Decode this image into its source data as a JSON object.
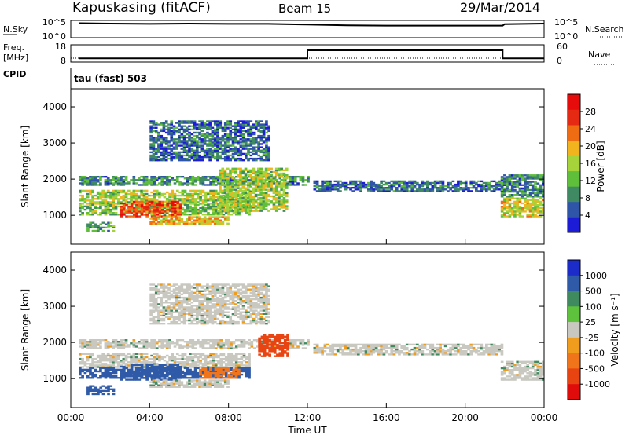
{
  "header": {
    "title": "Kapuskasing (fitACF)",
    "beam": "Beam 15",
    "date": "29/Mar/2014"
  },
  "top_panel": {
    "left_label": "N.Sky",
    "left_ticks": [
      "10^5",
      "10^0"
    ],
    "right_label": "N.Search",
    "right_ticks": [
      "10^5",
      "10^0"
    ]
  },
  "freq_panel": {
    "left_label_1": "Freq.",
    "left_label_2": "[MHz]",
    "left_ticks": [
      "18",
      "8"
    ],
    "right_label": "Nave",
    "right_ticks": [
      "60",
      "0"
    ]
  },
  "cpid": {
    "label": "CPID",
    "program": "tau (fast) 503"
  },
  "colors": {
    "power": [
      "#1c1cd6",
      "#2f55a8",
      "#3f8a62",
      "#5fbf3a",
      "#a6d23a",
      "#f2b41e",
      "#f06c12",
      "#e42a12",
      "#e60c0c"
    ],
    "velocity": [
      "#1c2cc8",
      "#2f5aa8",
      "#3f8a5e",
      "#5fc23c",
      "#c8c8c0",
      "#f09c1c",
      "#f0741a",
      "#e84412",
      "#e00c0c"
    ],
    "sky_trace": "#000000"
  },
  "chart_data": [
    {
      "type": "heatmap",
      "name": "power",
      "ylabel": "Slant Range [km]",
      "ylim": [
        200,
        4500
      ],
      "y_ticks": [
        "1000",
        "2000",
        "3000",
        "4000"
      ],
      "colorbar_label": "Power [dB]",
      "colorbar_ticks": [
        "4",
        "8",
        "12",
        "16",
        "20",
        "24",
        "28"
      ],
      "bands": [
        {
          "t0": 0.4,
          "t1": 12.0,
          "r0": 1820,
          "r1": 2080,
          "val": 8
        },
        {
          "t0": 0.4,
          "t1": 9.0,
          "r0": 1300,
          "r1": 1700,
          "val": 14
        },
        {
          "t0": 0.4,
          "t1": 9.0,
          "r0": 1000,
          "r1": 1300,
          "val": 12
        },
        {
          "t0": 2.5,
          "t1": 5.5,
          "r0": 950,
          "r1": 1400,
          "val": 24
        },
        {
          "t0": 0.8,
          "t1": 2.2,
          "r0": 550,
          "r1": 800,
          "val": 10
        },
        {
          "t0": 4.0,
          "t1": 8.0,
          "r0": 750,
          "r1": 950,
          "val": 18
        },
        {
          "t0": 7.5,
          "t1": 11.0,
          "r0": 1100,
          "r1": 2300,
          "val": 14
        },
        {
          "t0": 12.3,
          "t1": 21.8,
          "r0": 1650,
          "r1": 1950,
          "val": 6
        },
        {
          "t0": 21.8,
          "t1": 24.0,
          "r0": 950,
          "r1": 1450,
          "val": 16
        },
        {
          "t0": 21.8,
          "t1": 24.0,
          "r0": 1500,
          "r1": 2100,
          "val": 8
        },
        {
          "t0": 4.0,
          "t1": 10.0,
          "r0": 2500,
          "r1": 3600,
          "val": 6
        }
      ]
    },
    {
      "type": "heatmap",
      "name": "velocity",
      "xlabel": "Time UT",
      "ylabel": "Slant Range [km]",
      "ylim": [
        200,
        4500
      ],
      "y_ticks": [
        "1000",
        "2000",
        "3000",
        "4000"
      ],
      "x_ticks": [
        "00:00",
        "04:00",
        "08:00",
        "12:00",
        "16:00",
        "20:00",
        "00:00"
      ],
      "xlim": [
        0,
        24
      ],
      "colorbar_label": "Velocity [m s⁻¹]",
      "colorbar_ticks": [
        "1000",
        "500",
        "100",
        "25",
        "-25",
        "-100",
        "-500",
        "-1000"
      ],
      "bands": [
        {
          "t0": 0.4,
          "t1": 12.0,
          "r0": 1820,
          "r1": 2080,
          "val": 0
        },
        {
          "t0": 0.4,
          "t1": 9.0,
          "r0": 1300,
          "r1": 1700,
          "val": 0
        },
        {
          "t0": 0.4,
          "t1": 9.0,
          "r0": 1000,
          "r1": 1300,
          "val": 150
        },
        {
          "t0": 2.5,
          "t1": 5.5,
          "r0": 950,
          "r1": 1400,
          "val": 300
        },
        {
          "t0": 0.8,
          "t1": 2.2,
          "r0": 550,
          "r1": 800,
          "val": 200
        },
        {
          "t0": 4.0,
          "t1": 8.0,
          "r0": 750,
          "r1": 950,
          "val": 0
        },
        {
          "t0": 6.5,
          "t1": 8.5,
          "r0": 1000,
          "r1": 1300,
          "val": -300
        },
        {
          "t0": 9.5,
          "t1": 11.0,
          "r0": 1600,
          "r1": 2200,
          "val": -700
        },
        {
          "t0": 12.3,
          "t1": 21.8,
          "r0": 1650,
          "r1": 1950,
          "val": 0
        },
        {
          "t0": 21.8,
          "t1": 24.0,
          "r0": 950,
          "r1": 1450,
          "val": 0
        },
        {
          "t0": 4.0,
          "t1": 10.0,
          "r0": 2500,
          "r1": 3600,
          "val": 0
        }
      ]
    },
    {
      "type": "line",
      "name": "nsky",
      "x": [
        0.4,
        2,
        4,
        6,
        8,
        10,
        12,
        14,
        16,
        18,
        20,
        21.9,
        22,
        23,
        24
      ],
      "y": [
        4.2,
        4.1,
        4.0,
        4.1,
        4.0,
        4.0,
        3.8,
        3.6,
        3.5,
        3.5,
        3.5,
        3.5,
        3.9,
        4.0,
        4.1
      ],
      "ylim": [
        0,
        5
      ]
    },
    {
      "type": "line",
      "name": "frequency",
      "x": [
        0.4,
        12.0,
        12.0,
        21.9,
        21.9,
        24
      ],
      "y": [
        10.2,
        10.2,
        14.8,
        14.8,
        10.2,
        10.2
      ],
      "ylim": [
        8,
        18
      ]
    }
  ]
}
